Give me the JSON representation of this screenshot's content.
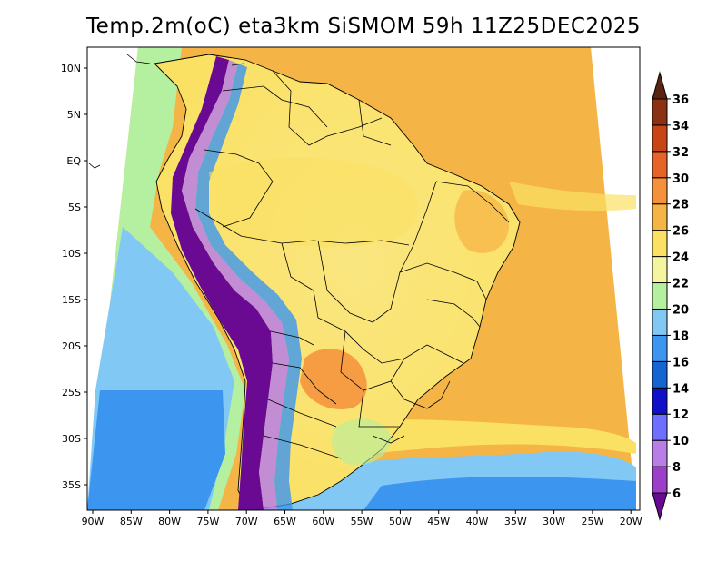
{
  "title": "Temp.2m(oC) eta3km SiSMOM 59h 11Z25DEC2025",
  "map": {
    "lon_ticks": [
      "90W",
      "85W",
      "80W",
      "75W",
      "70W",
      "65W",
      "60W",
      "55W",
      "50W",
      "45W",
      "40W",
      "35W",
      "30W",
      "25W",
      "20W"
    ],
    "lat_ticks": [
      "10N",
      "5N",
      "EQ",
      "5S",
      "10S",
      "15S",
      "20S",
      "25S",
      "30S",
      "35S"
    ],
    "lon_range": [
      -91,
      -19
    ],
    "lat_range": [
      -38,
      12
    ]
  },
  "colorbar": {
    "labels": [
      "6",
      "8",
      "10",
      "12",
      "14",
      "16",
      "18",
      "20",
      "22",
      "24",
      "26",
      "28",
      "30",
      "32",
      "34",
      "36"
    ],
    "colors": [
      "#6a0a93",
      "#9b3fc8",
      "#b97ee6",
      "#6e6eff",
      "#1010c8",
      "#1464d2",
      "#3c96f0",
      "#82c8f5",
      "#b4f0a0",
      "#f5f5a0",
      "#fae164",
      "#f5b446",
      "#f5913c",
      "#e66428",
      "#c84614",
      "#8c3214",
      "#5a2410"
    ]
  }
}
